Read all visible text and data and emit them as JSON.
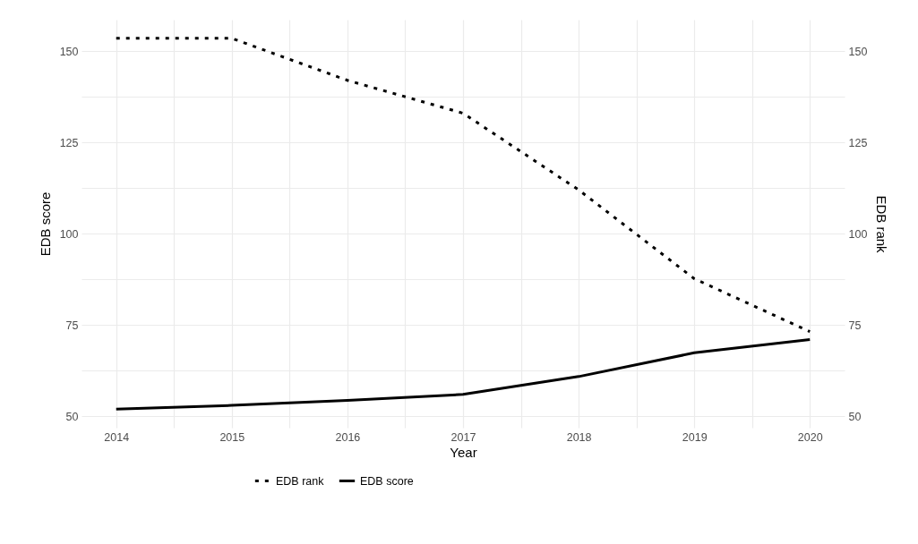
{
  "chart_data": {
    "type": "line",
    "xlabel": "Year",
    "ylabel": "EDB score",
    "y2label": "EDB rank",
    "x": [
      2014,
      2015,
      2016,
      2017,
      2018,
      2019,
      2020
    ],
    "series": [
      {
        "name": "EDB rank",
        "color": "#000000",
        "line_style": "dotted",
        "axis": "y2",
        "values": [
          153.5,
          153.5,
          142,
          133,
          112,
          87.7,
          73.2
        ]
      },
      {
        "name": "EDB score",
        "color": "#000000",
        "line_style": "solid",
        "values": [
          52,
          53,
          54.4,
          56,
          60.9,
          67.4,
          71
        ]
      }
    ],
    "xlim": [
      2013.7,
      2020.3
    ],
    "xticks": [
      2014,
      {
        "value": 2014.5,
        "label": null
      },
      2015,
      {
        "value": 2015.5,
        "label": null
      },
      2016,
      {
        "value": 2016.5,
        "label": null
      },
      2017,
      {
        "value": 2017.5,
        "label": null
      },
      2018,
      {
        "value": 2018.5,
        "label": null
      },
      2019,
      {
        "value": 2019.5,
        "label": null
      },
      2020
    ],
    "ylim": [
      46.9,
      158.6
    ],
    "yticks": [
      50,
      {
        "value": 62.5,
        "label": null
      },
      75,
      {
        "value": 87.5,
        "label": null
      },
      100,
      {
        "value": 112.5,
        "label": null
      },
      125,
      {
        "value": 137.5,
        "label": null
      },
      150
    ],
    "y2lim": [
      46.9,
      158.6
    ],
    "y2ticks": [
      50,
      75,
      100,
      125,
      150
    ],
    "grid": true,
    "legend": "bottom"
  }
}
